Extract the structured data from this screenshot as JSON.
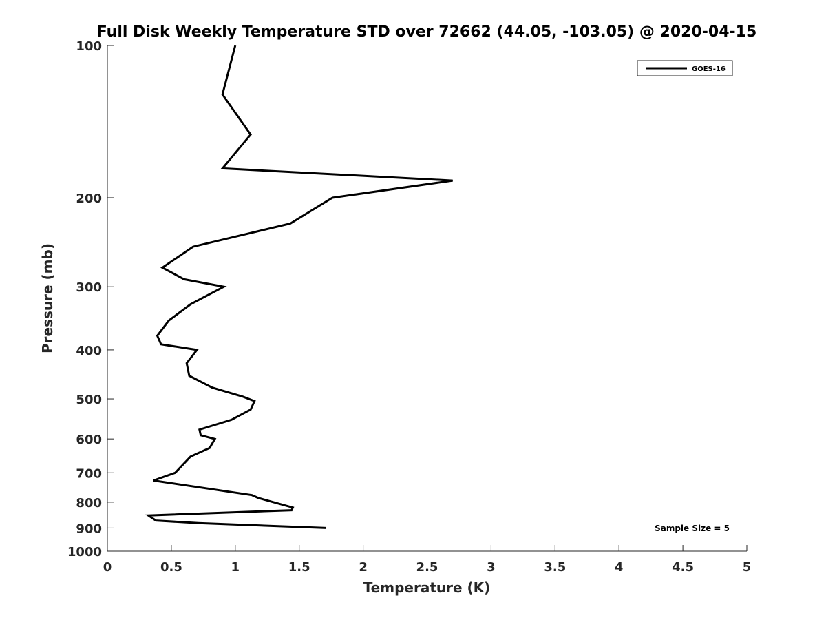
{
  "chart_data": {
    "type": "line",
    "title": "Full Disk Weekly Temperature STD over 72662 (44.05, -103.05) @ 2020-04-15",
    "xlabel": "Temperature (K)",
    "ylabel": "Pressure (mb)",
    "xlim": [
      0,
      5
    ],
    "ylim": [
      100,
      1000
    ],
    "y_scale": "log",
    "y_reversed": true,
    "x_ticks": [
      "0",
      "0.5",
      "1",
      "1.5",
      "2",
      "2.5",
      "3",
      "3.5",
      "4",
      "4.5",
      "5"
    ],
    "y_ticks": [
      "100",
      "200",
      "300",
      "400",
      "500",
      "600",
      "700",
      "800",
      "900",
      "1000"
    ],
    "grid": false,
    "legend_position": "top-right",
    "annotation": "Sample Size = 5",
    "series": [
      {
        "name": "GOES-16",
        "color": "#000000",
        "points": [
          [
            1.0,
            100
          ],
          [
            0.9,
            125
          ],
          [
            1.12,
            150
          ],
          [
            0.9,
            175
          ],
          [
            2.7,
            185
          ],
          [
            1.76,
            200
          ],
          [
            1.43,
            225
          ],
          [
            0.67,
            250
          ],
          [
            0.43,
            275
          ],
          [
            0.6,
            290
          ],
          [
            0.91,
            300
          ],
          [
            0.65,
            325
          ],
          [
            0.48,
            350
          ],
          [
            0.39,
            375
          ],
          [
            0.42,
            390
          ],
          [
            0.7,
            400
          ],
          [
            0.62,
            425
          ],
          [
            0.64,
            450
          ],
          [
            0.82,
            475
          ],
          [
            1.06,
            495
          ],
          [
            1.15,
            505
          ],
          [
            1.12,
            525
          ],
          [
            0.97,
            550
          ],
          [
            0.72,
            575
          ],
          [
            0.73,
            590
          ],
          [
            0.84,
            600
          ],
          [
            0.8,
            625
          ],
          [
            0.65,
            650
          ],
          [
            0.53,
            700
          ],
          [
            0.36,
            725
          ],
          [
            1.13,
            775
          ],
          [
            1.18,
            785
          ],
          [
            1.45,
            820
          ],
          [
            1.44,
            830
          ],
          [
            0.32,
            850
          ],
          [
            0.38,
            870
          ],
          [
            0.71,
            880
          ],
          [
            1.71,
            900
          ]
        ]
      }
    ]
  }
}
